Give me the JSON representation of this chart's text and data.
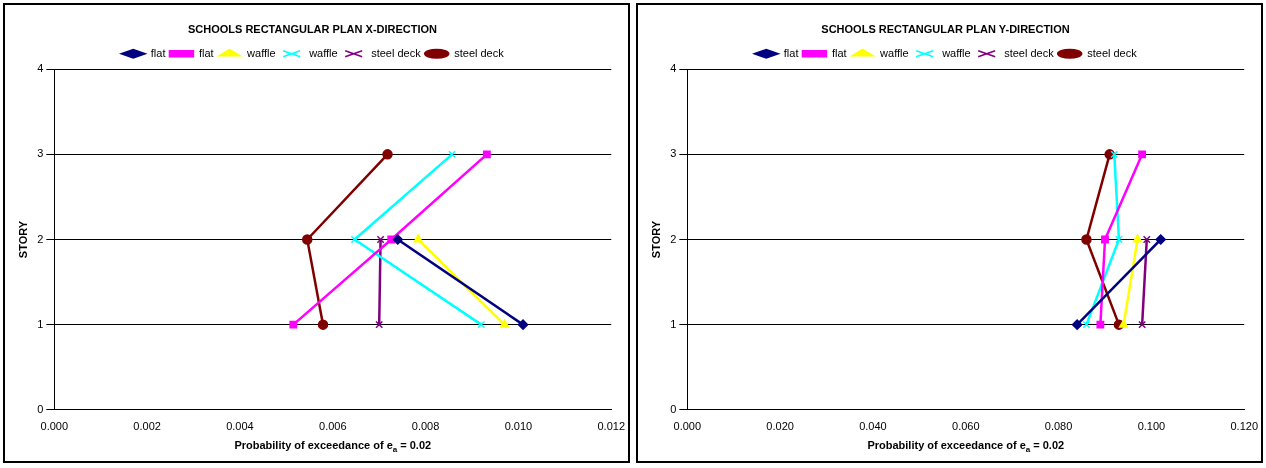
{
  "chart_data": [
    {
      "type": "line",
      "title": "SCHOOLS RECTANGULAR PLAN X-DIRECTION",
      "xlabel": "Probability of exceedance of e$_{a}$ = 0.02",
      "ylabel": "STORY",
      "xlim": [
        0,
        0.012
      ],
      "xticks": [
        {
          "value": 0,
          "label": "0.000"
        },
        {
          "value": 0.002,
          "label": "0.002"
        },
        {
          "value": 0.004,
          "label": "0.004"
        },
        {
          "value": 0.006,
          "label": "0.006"
        },
        {
          "value": 0.008,
          "label": "0.008"
        },
        {
          "value": 0.01,
          "label": "0.010"
        },
        {
          "value": 0.012,
          "label": "0.012"
        }
      ],
      "ylim": [
        0,
        4
      ],
      "yticks": [
        0,
        1,
        2,
        3,
        4
      ],
      "grid": "y",
      "legend": "top",
      "series": [
        {
          "name": "flat",
          "color": "#000080",
          "marker": "diamond",
          "x": [
            0.0101,
            0.0074
          ],
          "values": [
            1,
            2
          ]
        },
        {
          "name": "flat",
          "color": "#ff00ff",
          "marker": "square",
          "x": [
            0.00515,
            0.00726,
            0.00932
          ],
          "values": [
            1,
            2,
            3
          ]
        },
        {
          "name": "waffle",
          "color": "#ffff00",
          "marker": "triangle",
          "x": [
            0.0097,
            0.00784
          ],
          "values": [
            1,
            2
          ]
        },
        {
          "name": "waffle",
          "color": "#00ffff",
          "marker": "cross",
          "x": [
            0.0092,
            0.00647,
            0.00857
          ],
          "values": [
            1,
            2,
            3
          ]
        },
        {
          "name": "steel deck",
          "color": "#800080",
          "marker": "cross",
          "x": [
            0.007,
            0.00703
          ],
          "values": [
            1,
            2
          ]
        },
        {
          "name": "steel deck",
          "color": "#800000",
          "marker": "circle",
          "x": [
            0.00579,
            0.00545,
            0.00718
          ],
          "values": [
            1,
            2,
            3
          ]
        }
      ]
    },
    {
      "type": "line",
      "title": "SCHOOLS RECTANGULAR PLAN Y-DIRECTION",
      "xlabel": "Probability of exceedance of e$_{a}$ = 0.02",
      "ylabel": "STORY",
      "xlim": [
        0,
        0.12
      ],
      "xticks": [
        {
          "value": 0,
          "label": "0.000"
        },
        {
          "value": 0.02,
          "label": "0.020"
        },
        {
          "value": 0.04,
          "label": "0.040"
        },
        {
          "value": 0.06,
          "label": "0.060"
        },
        {
          "value": 0.08,
          "label": "0.080"
        },
        {
          "value": 0.1,
          "label": "0.100"
        },
        {
          "value": 0.12,
          "label": "0.120"
        }
      ],
      "ylim": [
        0,
        4
      ],
      "yticks": [
        0,
        1,
        2,
        3,
        4
      ],
      "grid": "y",
      "legend": "top",
      "series": [
        {
          "name": "flat",
          "color": "#000080",
          "marker": "diamond",
          "x": [
            0.084,
            0.102
          ],
          "values": [
            1,
            2
          ]
        },
        {
          "name": "flat",
          "color": "#ff00ff",
          "marker": "square",
          "x": [
            0.089,
            0.09,
            0.098
          ],
          "values": [
            1,
            2,
            3
          ]
        },
        {
          "name": "waffle",
          "color": "#ffff00",
          "marker": "triangle",
          "x": [
            0.094,
            0.097
          ],
          "values": [
            1,
            2
          ]
        },
        {
          "name": "waffle",
          "color": "#00ffff",
          "marker": "cross",
          "x": [
            0.086,
            0.093,
            0.092
          ],
          "values": [
            1,
            2,
            3
          ]
        },
        {
          "name": "steel deck",
          "color": "#800080",
          "marker": "cross",
          "x": [
            0.098,
            0.099
          ],
          "values": [
            1,
            2
          ]
        },
        {
          "name": "steel deck",
          "color": "#800000",
          "marker": "circle",
          "x": [
            0.093,
            0.086,
            0.091
          ],
          "values": [
            1,
            2,
            3
          ]
        }
      ]
    }
  ]
}
